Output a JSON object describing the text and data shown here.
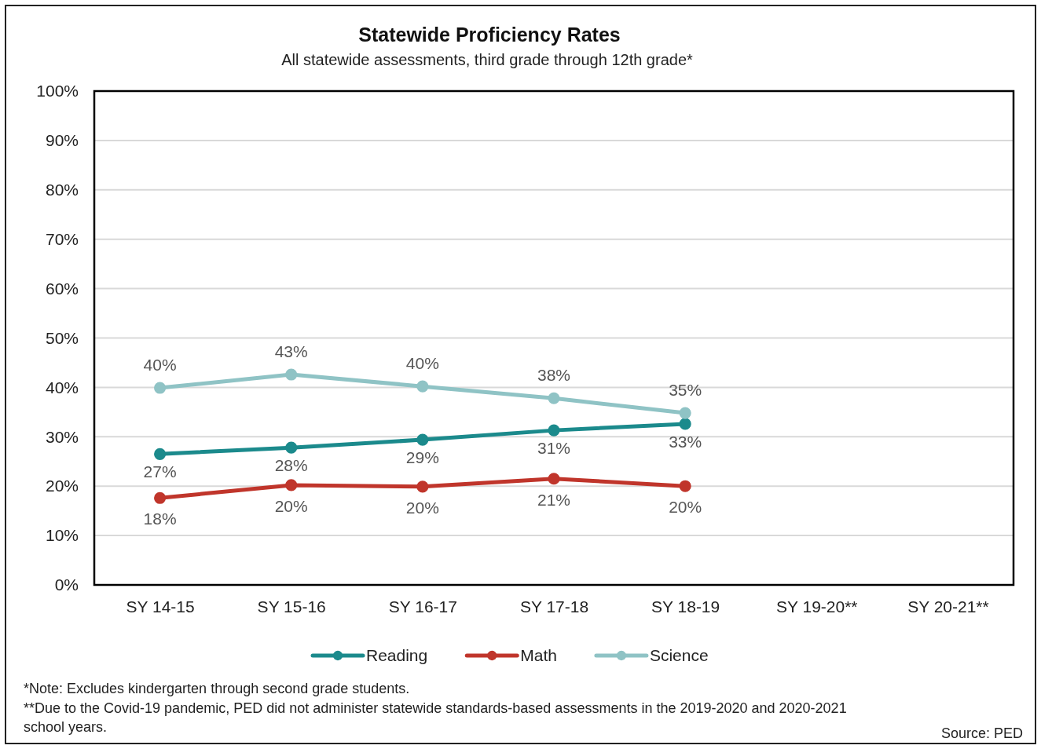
{
  "chart_data": {
    "type": "line",
    "title": "Statewide Proficiency Rates",
    "subtitle": "All statewide assessments, third grade through 12th grade*",
    "categories": [
      "SY 14-15",
      "SY 15-16",
      "SY 16-17",
      "SY 17-18",
      "SY 18-19",
      "SY 19-20**",
      "SY 20-21**"
    ],
    "series": [
      {
        "name": "Reading",
        "color": "#1b8a8c",
        "values": [
          26.5,
          27.8,
          29.4,
          31.3,
          32.6,
          null,
          null
        ],
        "value_labels": [
          "27%",
          "28%",
          "29%",
          "31%",
          "33%",
          null,
          null
        ]
      },
      {
        "name": "Math",
        "color": "#c0352b",
        "values": [
          17.6,
          20.2,
          19.9,
          21.5,
          20.0,
          null,
          null
        ],
        "value_labels": [
          "18%",
          "20%",
          "20%",
          "21%",
          "20%",
          null,
          null
        ]
      },
      {
        "name": "Science",
        "color": "#8fc3c5",
        "values": [
          39.9,
          42.6,
          40.2,
          37.8,
          34.8,
          null,
          null
        ],
        "value_labels": [
          "40%",
          "43%",
          "40%",
          "38%",
          "35%",
          null,
          null
        ]
      }
    ],
    "ylim": [
      0,
      100
    ],
    "yticks": [
      {
        "value": 0,
        "label": "0%"
      },
      {
        "value": 10,
        "label": "10%"
      },
      {
        "value": 20,
        "label": "20%"
      },
      {
        "value": 30,
        "label": "30%"
      },
      {
        "value": 40,
        "label": "40%"
      },
      {
        "value": 50,
        "label": "50%"
      },
      {
        "value": 60,
        "label": "60%"
      },
      {
        "value": 70,
        "label": "70%"
      },
      {
        "value": 80,
        "label": "80%"
      },
      {
        "value": 90,
        "label": "90%"
      },
      {
        "value": 100,
        "label": "100%"
      }
    ],
    "grid": "y",
    "legend": "bottom",
    "marker": "circle",
    "line_style": "solid",
    "annotations": [
      "*Note: Excludes kindergarten through second grade students.",
      "**Due to the Covid-19 pandemic, PED did not administer statewide standards-based assessments in the 2019-2020 and 2020-2021 school years.",
      "Source: PED"
    ]
  }
}
